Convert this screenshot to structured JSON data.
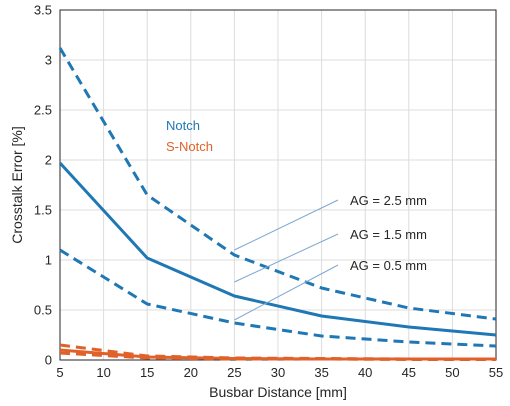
{
  "chart_data": {
    "type": "line",
    "xlabel": "Busbar Distance [mm]",
    "ylabel": "Crosstalk Error [%]",
    "xlim": [
      5,
      55
    ],
    "ylim": [
      0,
      3.5
    ],
    "xticks": [
      "5",
      "10",
      "15",
      "20",
      "25",
      "30",
      "35",
      "40",
      "45",
      "50",
      "55"
    ],
    "yticks": [
      "0",
      "0.5",
      "1",
      "1.5",
      "2",
      "2.5",
      "3",
      "3.5"
    ],
    "grid": true,
    "x": [
      5,
      15,
      25,
      35,
      45,
      55
    ],
    "legend": [
      {
        "label": "Notch",
        "color": "#1f77b4"
      },
      {
        "label": "S-Notch",
        "color": "#e0622a"
      }
    ],
    "series": [
      {
        "group": "Notch",
        "ag": "2.5 mm",
        "style": "dashed",
        "color": "#1f77b4",
        "values": [
          3.12,
          1.65,
          1.05,
          0.72,
          0.52,
          0.41
        ]
      },
      {
        "group": "Notch",
        "ag": "1.5 mm",
        "style": "solid",
        "color": "#1f77b4",
        "values": [
          1.97,
          1.02,
          0.64,
          0.44,
          0.33,
          0.25
        ]
      },
      {
        "group": "Notch",
        "ag": "0.5 mm",
        "style": "dashed",
        "color": "#1f77b4",
        "values": [
          1.1,
          0.56,
          0.37,
          0.24,
          0.18,
          0.14
        ]
      },
      {
        "group": "S-Notch",
        "ag": "2.5 mm",
        "style": "dashed",
        "color": "#e0622a",
        "values": [
          0.15,
          0.04,
          0.02,
          0.015,
          0.01,
          0.01
        ]
      },
      {
        "group": "S-Notch",
        "ag": "1.5 mm",
        "style": "solid",
        "color": "#e0622a",
        "values": [
          0.1,
          0.03,
          0.015,
          0.01,
          0.01,
          0.01
        ]
      },
      {
        "group": "S-Notch",
        "ag": "0.5 mm",
        "style": "dashed",
        "color": "#e0622a",
        "values": [
          0.07,
          0.02,
          0.01,
          0.01,
          0.005,
          0.005
        ]
      }
    ],
    "annotations": [
      {
        "text": "AG = 2.5 mm",
        "target": {
          "x": 25,
          "y": 1.1
        }
      },
      {
        "text": "AG = 1.5 mm",
        "target": {
          "x": 25,
          "y": 0.78
        }
      },
      {
        "text": "AG = 0.5 mm",
        "target": {
          "x": 25,
          "y": 0.4
        }
      }
    ]
  }
}
